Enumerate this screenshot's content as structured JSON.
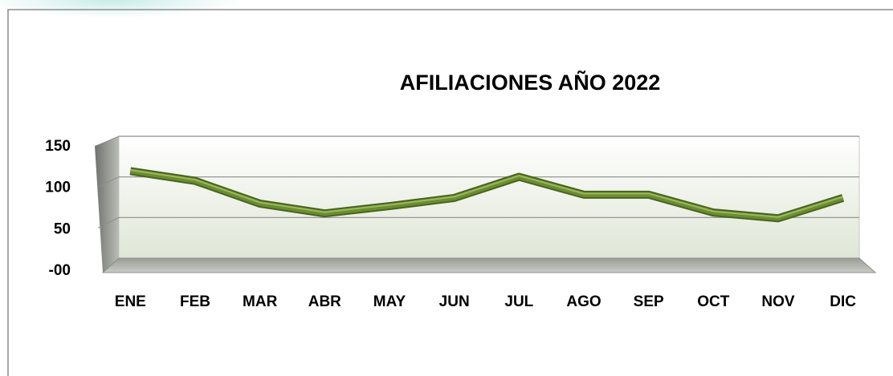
{
  "chart_data": {
    "type": "line",
    "title": "AFILIACIONES AÑO  2022",
    "categories": [
      "ENE",
      "FEB",
      "MAR",
      "ABR",
      "MAY",
      "JUN",
      "JUL",
      "AGO",
      "SEP",
      "OCT",
      "NOV",
      "DIC"
    ],
    "series": [
      {
        "name": "AFILIACIONES",
        "color": "#6b8e2f",
        "values": [
          115,
          103,
          75,
          63,
          72,
          82,
          108,
          86,
          86,
          64,
          57,
          82
        ]
      }
    ],
    "ylim": [
      0,
      150
    ],
    "yticks": [
      {
        "value": 0,
        "label": "-00"
      },
      50,
      100,
      150
    ],
    "grid": true
  }
}
